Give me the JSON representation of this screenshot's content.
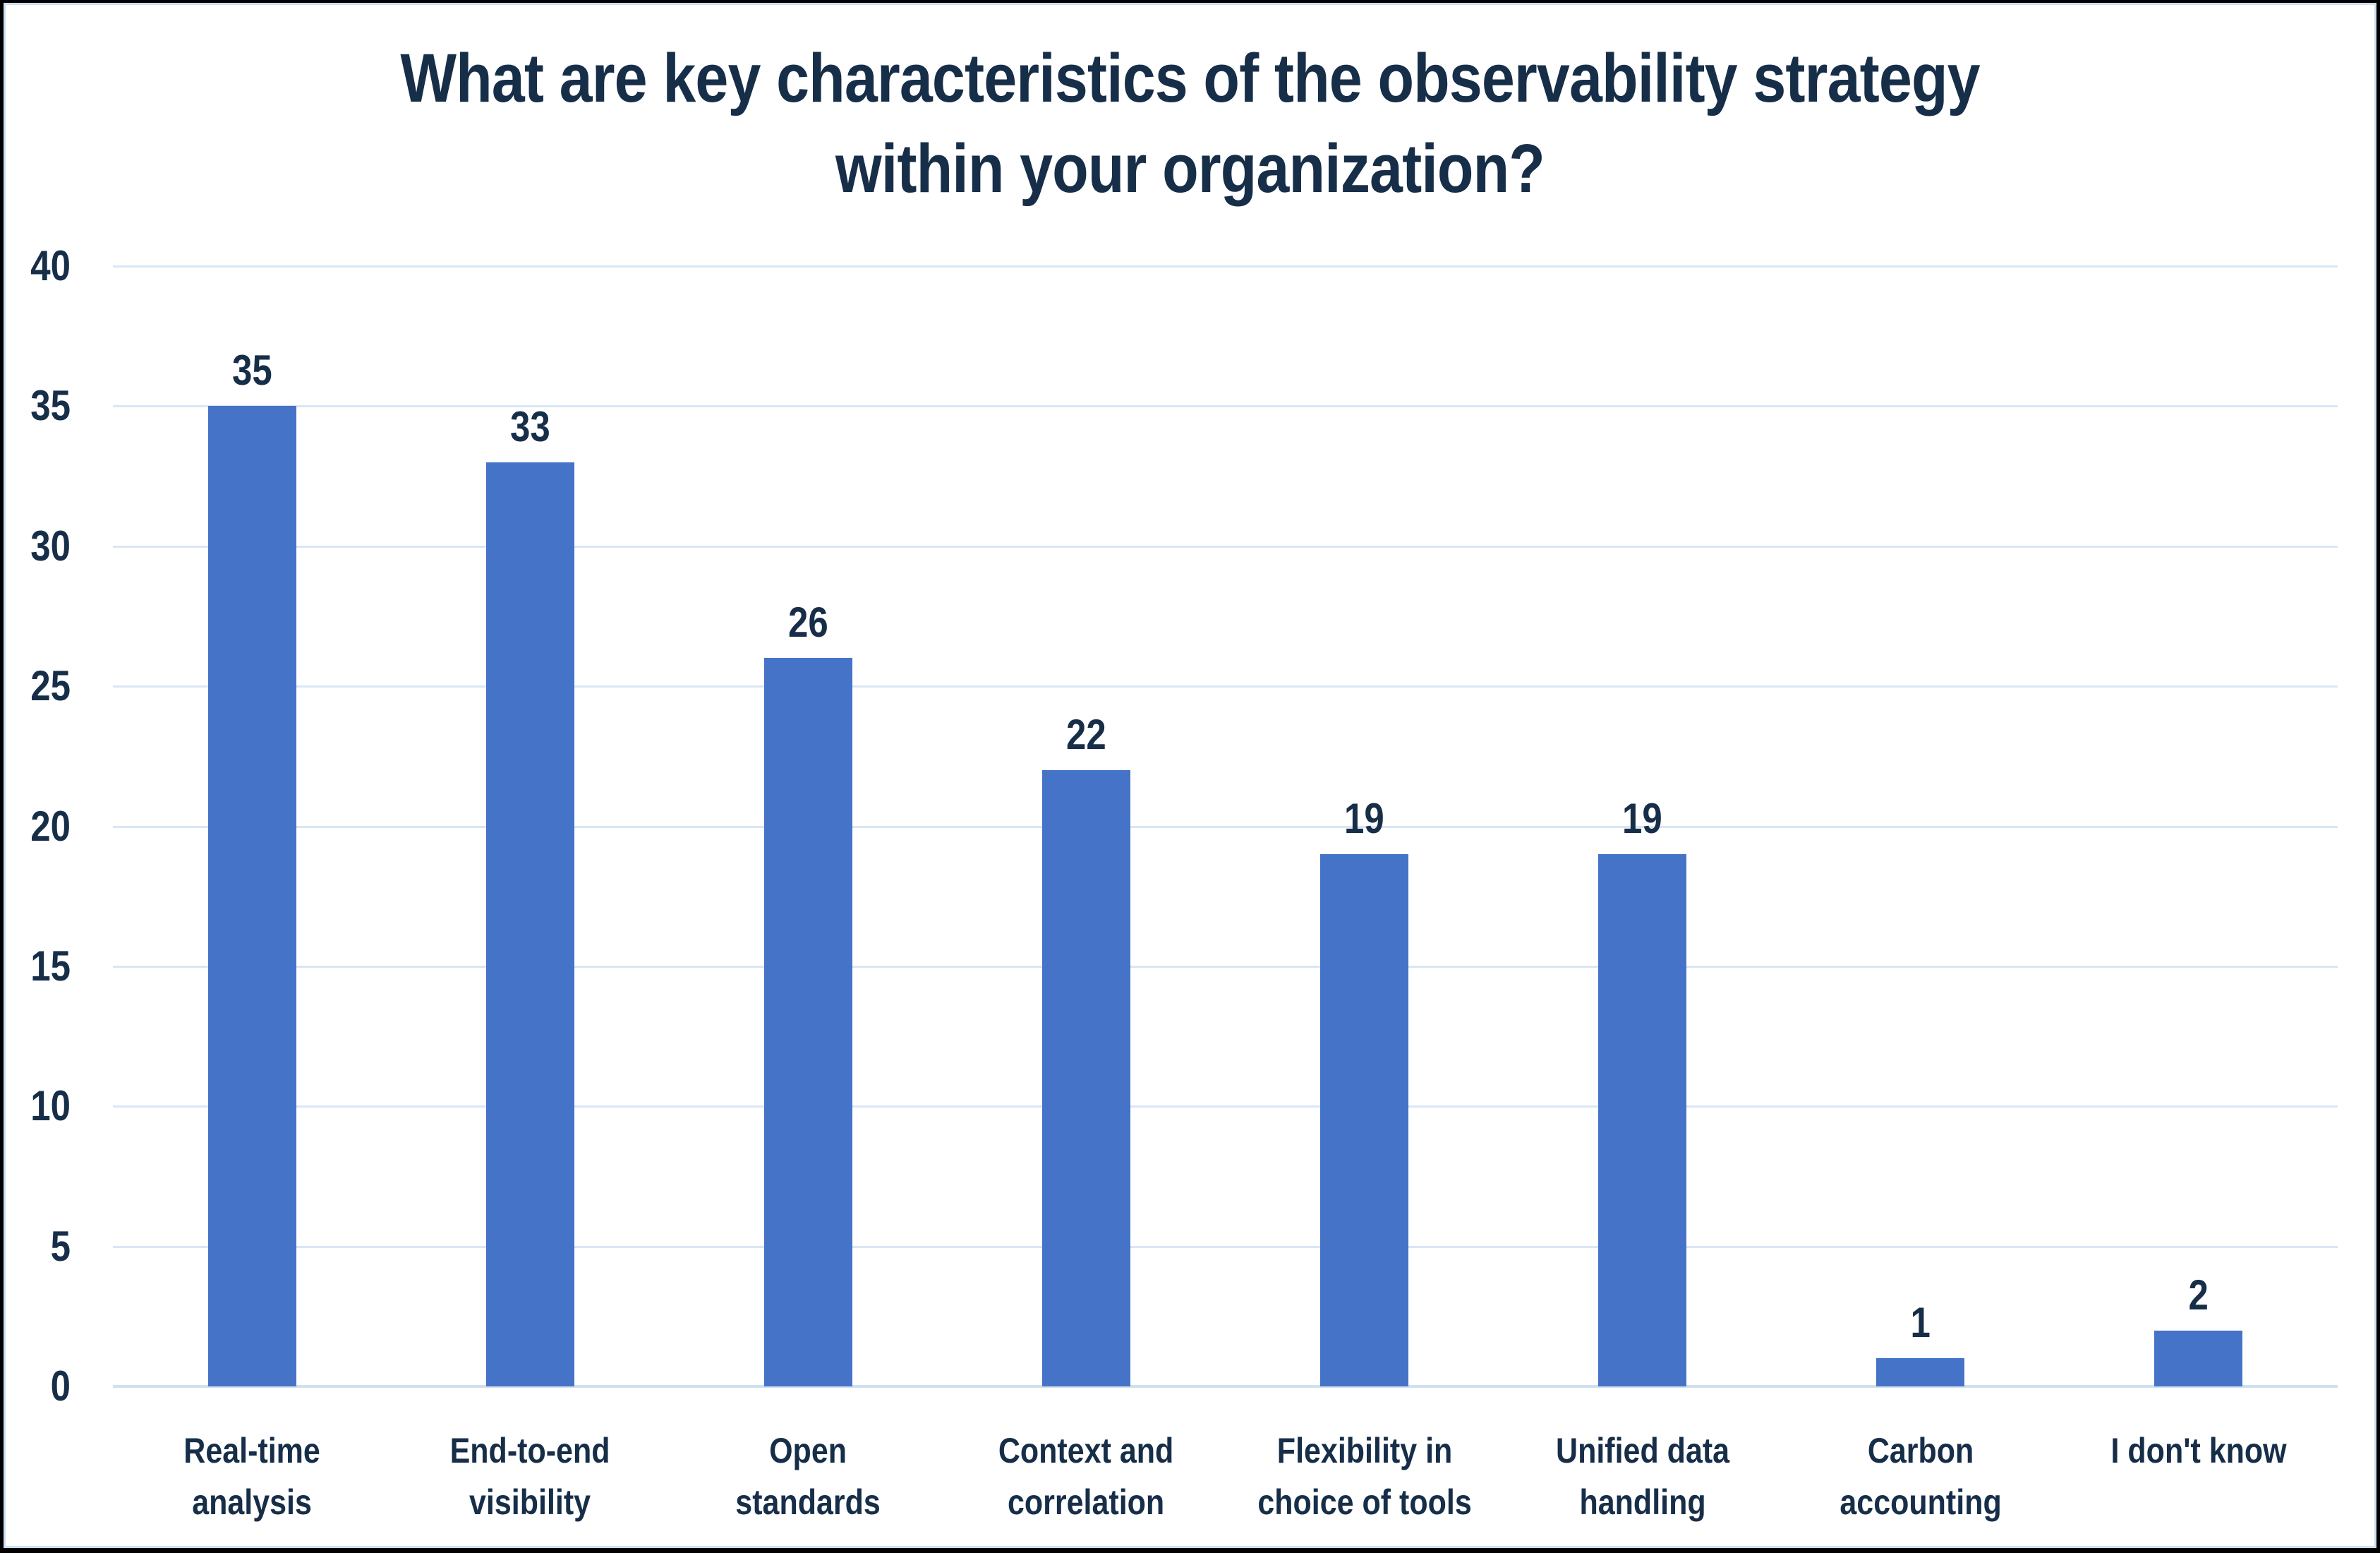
{
  "frame": {
    "outer_border_color": "#000000",
    "chart_border_color": "#cddff2",
    "chart_background": "#ffffff"
  },
  "chart_data": {
    "type": "bar",
    "title": "What are key characteristics of the observability strategy\nwithin your organization?",
    "categories": [
      "Real-time\nanalysis",
      "End-to-end\nvisibility",
      "Open\nstandards",
      "Context and\ncorrelation",
      "Flexibility in\nchoice of tools",
      "Unified data\nhandling",
      "Carbon\naccounting",
      "I don't know"
    ],
    "values": [
      35,
      33,
      26,
      22,
      19,
      19,
      1,
      2
    ],
    "data_labels": [
      "35",
      "33",
      "26",
      "22",
      "19",
      "19",
      "1",
      "2"
    ],
    "xlabel": "",
    "ylabel": "",
    "ylim": [
      0,
      40
    ],
    "yticks": [
      0,
      5,
      10,
      15,
      20,
      25,
      30,
      35,
      40
    ],
    "grid": true,
    "legend_position": "none",
    "colors": {
      "bar": "#4573c7",
      "text": "#172e49",
      "gridline": "#d9e6f5",
      "axis_line": "#cfe0f0"
    }
  }
}
